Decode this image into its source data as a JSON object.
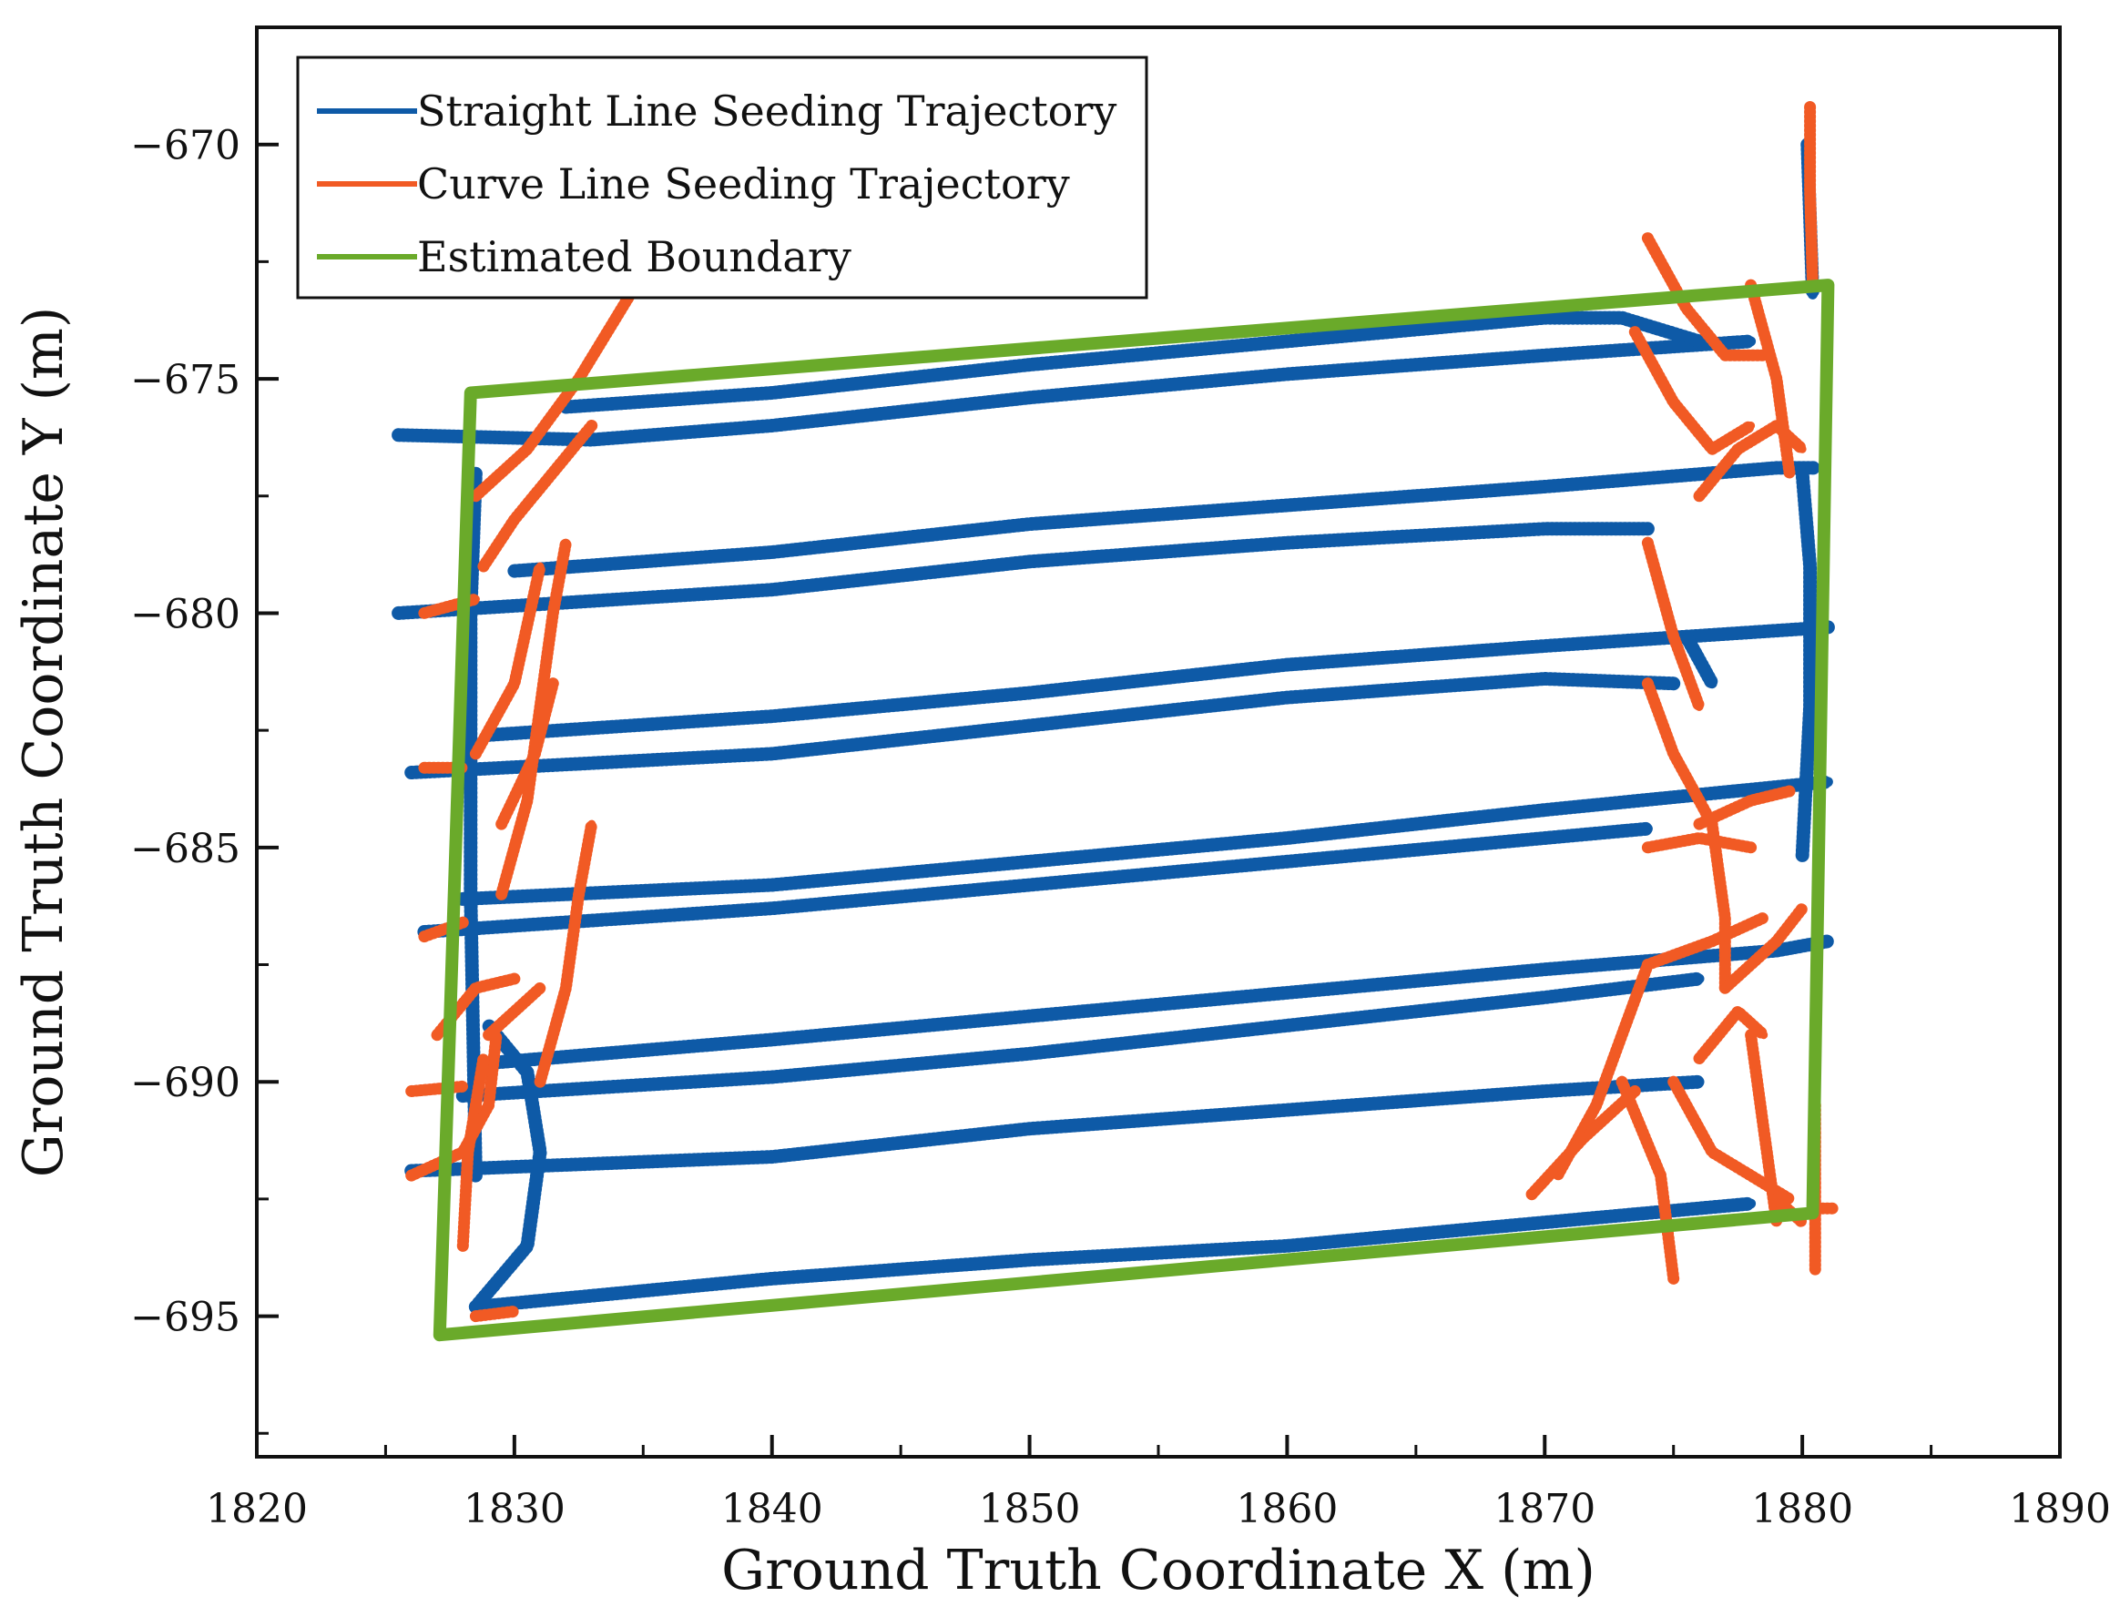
{
  "chart_data": {
    "type": "line",
    "title": "",
    "xlabel": "Ground Truth Coordinate X (m)",
    "ylabel": "Ground Truth Coordinate Y (m)",
    "xlim": [
      1820,
      1890
    ],
    "ylim": [
      -698,
      -667.5
    ],
    "xticks": [
      1820,
      1830,
      1840,
      1850,
      1860,
      1870,
      1880,
      1890
    ],
    "yticks": [
      -670,
      -675,
      -680,
      -685,
      -690,
      -695
    ],
    "grid": false,
    "legend_position": "top-left",
    "series": [
      {
        "name": "Straight Line Seeding Trajectory",
        "color": "#0e5aa7",
        "segments": [
          [
            [
              1828.5,
              -694.8
            ],
            [
              1840,
              -694.2
            ],
            [
              1850,
              -693.8
            ],
            [
              1860,
              -693.5
            ],
            [
              1870,
              -693.0
            ],
            [
              1878,
              -692.6
            ]
          ],
          [
            [
              1826,
              -691.9
            ],
            [
              1840,
              -691.6
            ],
            [
              1850,
              -691.0
            ],
            [
              1860,
              -690.6
            ],
            [
              1870,
              -690.2
            ],
            [
              1876,
              -690.0
            ]
          ],
          [
            [
              1828,
              -690.3
            ],
            [
              1840,
              -689.9
            ],
            [
              1850,
              -689.4
            ],
            [
              1860,
              -688.8
            ],
            [
              1870,
              -688.2
            ],
            [
              1876,
              -687.8
            ]
          ],
          [
            [
              1829,
              -689.6
            ],
            [
              1840,
              -689.1
            ],
            [
              1850,
              -688.6
            ],
            [
              1860,
              -688.1
            ],
            [
              1870,
              -687.6
            ],
            [
              1879,
              -687.2
            ],
            [
              1881,
              -687.0
            ]
          ],
          [
            [
              1826.5,
              -686.8
            ],
            [
              1840,
              -686.3
            ],
            [
              1850,
              -685.8
            ],
            [
              1860,
              -685.3
            ],
            [
              1870,
              -684.8
            ],
            [
              1874,
              -684.6
            ]
          ],
          [
            [
              1828,
              -686.1
            ],
            [
              1840,
              -685.8
            ],
            [
              1850,
              -685.3
            ],
            [
              1860,
              -684.8
            ],
            [
              1870,
              -684.2
            ],
            [
              1881,
              -683.6
            ]
          ],
          [
            [
              1826,
              -683.4
            ],
            [
              1840,
              -683.0
            ],
            [
              1850,
              -682.4
            ],
            [
              1860,
              -681.8
            ],
            [
              1870,
              -681.4
            ],
            [
              1875,
              -681.5
            ]
          ],
          [
            [
              1829,
              -682.6
            ],
            [
              1840,
              -682.2
            ],
            [
              1850,
              -681.7
            ],
            [
              1860,
              -681.1
            ],
            [
              1870,
              -680.7
            ],
            [
              1881,
              -680.3
            ]
          ],
          [
            [
              1825.5,
              -680.0
            ],
            [
              1840,
              -679.5
            ],
            [
              1850,
              -678.9
            ],
            [
              1860,
              -678.5
            ],
            [
              1870,
              -678.2
            ],
            [
              1874,
              -678.2
            ]
          ],
          [
            [
              1830,
              -679.1
            ],
            [
              1840,
              -678.7
            ],
            [
              1850,
              -678.1
            ],
            [
              1860,
              -677.7
            ],
            [
              1870,
              -677.3
            ],
            [
              1879,
              -676.9
            ],
            [
              1880.5,
              -676.9
            ]
          ],
          [
            [
              1825.5,
              -676.2
            ],
            [
              1833,
              -676.3
            ],
            [
              1840,
              -676.0
            ],
            [
              1850,
              -675.4
            ],
            [
              1860,
              -674.9
            ],
            [
              1870,
              -674.5
            ],
            [
              1878,
              -674.2
            ]
          ],
          [
            [
              1832,
              -675.6
            ],
            [
              1840,
              -675.3
            ],
            [
              1850,
              -674.7
            ],
            [
              1860,
              -674.2
            ],
            [
              1870,
              -673.7
            ],
            [
              1873,
              -673.7
            ],
            [
              1876,
              -674.2
            ]
          ],
          [
            [
              1828.5,
              -694.8
            ],
            [
              1830.5,
              -693.5
            ],
            [
              1831,
              -691.5
            ],
            [
              1830.5,
              -689.8
            ],
            [
              1829,
              -688.8
            ]
          ],
          [
            [
              1828.5,
              -692
            ],
            [
              1828.3,
              -686
            ],
            [
              1828.3,
              -680
            ],
            [
              1828.5,
              -677
            ]
          ],
          [
            [
              1880.2,
              -670
            ],
            [
              1880.4,
              -673.2
            ]
          ],
          [
            [
              1880,
              -677
            ],
            [
              1880.3,
              -679
            ],
            [
              1880.3,
              -682
            ],
            [
              1880,
              -685.2
            ]
          ],
          [
            [
              1875.5,
              -680.5
            ],
            [
              1876.5,
              -681.5
            ]
          ]
        ]
      },
      {
        "name": "Curve Line Seeding Trajectory",
        "color": "#f15a24",
        "segments": [
          [
            [
              1828.5,
              -677.5
            ],
            [
              1830.5,
              -676.5
            ],
            [
              1832.5,
              -675
            ],
            [
              1834.5,
              -673.2
            ]
          ],
          [
            [
              1828.8,
              -679
            ],
            [
              1830,
              -678
            ],
            [
              1831.5,
              -677
            ],
            [
              1833,
              -676
            ]
          ],
          [
            [
              1826,
              -692
            ],
            [
              1828,
              -691.5
            ],
            [
              1829,
              -690.5
            ],
            [
              1829.3,
              -689
            ]
          ],
          [
            [
              1827,
              -689
            ],
            [
              1828.5,
              -688
            ],
            [
              1830,
              -687.8
            ]
          ],
          [
            [
              1829,
              -689
            ],
            [
              1831,
              -688
            ]
          ],
          [
            [
              1829.5,
              -686
            ],
            [
              1830.5,
              -684
            ],
            [
              1831,
              -682
            ],
            [
              1831.5,
              -680
            ],
            [
              1832,
              -678.5
            ]
          ],
          [
            [
              1829.5,
              -684.5
            ],
            [
              1830.8,
              -683
            ],
            [
              1831.5,
              -681.5
            ]
          ],
          [
            [
              1828,
              -693.5
            ],
            [
              1828.2,
              -691.5
            ],
            [
              1828.8,
              -689.5
            ]
          ],
          [
            [
              1831,
              -690
            ],
            [
              1832,
              -688
            ],
            [
              1832.5,
              -686
            ],
            [
              1833,
              -684.5
            ]
          ],
          [
            [
              1828.5,
              -683
            ],
            [
              1830,
              -681.5
            ],
            [
              1831,
              -679
            ]
          ],
          [
            [
              1828.5,
              -695
            ],
            [
              1830,
              -694.9
            ]
          ],
          [
            [
              1826.5,
              -680
            ],
            [
              1828.5,
              -679.7
            ]
          ],
          [
            [
              1826.5,
              -683.3
            ],
            [
              1828,
              -683.3
            ]
          ],
          [
            [
              1826.5,
              -686.9
            ],
            [
              1828,
              -686.6
            ]
          ],
          [
            [
              1826,
              -690.2
            ],
            [
              1828,
              -690.1
            ]
          ],
          [
            [
              1874,
              -672
            ],
            [
              1875.5,
              -673.5
            ],
            [
              1877,
              -674.5
            ],
            [
              1878.5,
              -674.5
            ]
          ],
          [
            [
              1873.5,
              -674
            ],
            [
              1875,
              -675.5
            ],
            [
              1876.5,
              -676.5
            ],
            [
              1878,
              -676
            ]
          ],
          [
            [
              1876,
              -677.5
            ],
            [
              1877.5,
              -676.5
            ],
            [
              1879,
              -676
            ],
            [
              1880,
              -676.5
            ]
          ],
          [
            [
              1874,
              -678.5
            ],
            [
              1875,
              -680.5
            ],
            [
              1876,
              -682
            ]
          ],
          [
            [
              1874,
              -681.5
            ],
            [
              1875,
              -683
            ],
            [
              1876.5,
              -684.5
            ],
            [
              1877,
              -686.5
            ],
            [
              1877,
              -688
            ]
          ],
          [
            [
              1874,
              -685
            ],
            [
              1876,
              -684.8
            ],
            [
              1878,
              -685
            ]
          ],
          [
            [
              1876,
              -684.5
            ],
            [
              1878,
              -684
            ],
            [
              1879.5,
              -683.8
            ]
          ],
          [
            [
              1874,
              -687.5
            ],
            [
              1876.5,
              -687
            ],
            [
              1878.5,
              -686.5
            ]
          ],
          [
            [
              1877,
              -688
            ],
            [
              1879,
              -687
            ],
            [
              1880,
              -686.3
            ]
          ],
          [
            [
              1874,
              -687.5
            ],
            [
              1873,
              -689
            ],
            [
              1872,
              -690.5
            ],
            [
              1870.5,
              -692
            ]
          ],
          [
            [
              1869.5,
              -692.4
            ],
            [
              1871.5,
              -691.2
            ],
            [
              1873.5,
              -690.2
            ]
          ],
          [
            [
              1873,
              -690
            ],
            [
              1874.5,
              -692
            ],
            [
              1875,
              -694.2
            ]
          ],
          [
            [
              1875,
              -690
            ],
            [
              1876.5,
              -691.5
            ],
            [
              1878,
              -692
            ],
            [
              1879.5,
              -692.5
            ]
          ],
          [
            [
              1876,
              -689.5
            ],
            [
              1877.5,
              -688.5
            ],
            [
              1878.5,
              -689
            ]
          ],
          [
            [
              1878,
              -689
            ],
            [
              1878.5,
              -691
            ],
            [
              1879,
              -693
            ]
          ],
          [
            [
              1880.3,
              -669.2
            ],
            [
              1880.3,
              -671
            ],
            [
              1880.4,
              -673
            ]
          ],
          [
            [
              1878,
              -673
            ],
            [
              1879,
              -675
            ],
            [
              1879.5,
              -677
            ]
          ],
          [
            [
              1880.5,
              -690.5
            ],
            [
              1880.5,
              -692.5
            ],
            [
              1880.5,
              -694
            ]
          ],
          [
            [
              1880.6,
              -692.7
            ],
            [
              1881.2,
              -692.7
            ]
          ],
          [
            [
              1879,
              -692.5
            ],
            [
              1880,
              -693
            ]
          ]
        ]
      },
      {
        "name": "Estimated Boundary",
        "color": "#6aaa2a",
        "closed": true,
        "points": [
          [
            1828.3,
            -675.3
          ],
          [
            1881.0,
            -673.0
          ],
          [
            1880.4,
            -692.8
          ],
          [
            1827.1,
            -695.4
          ]
        ]
      }
    ]
  }
}
